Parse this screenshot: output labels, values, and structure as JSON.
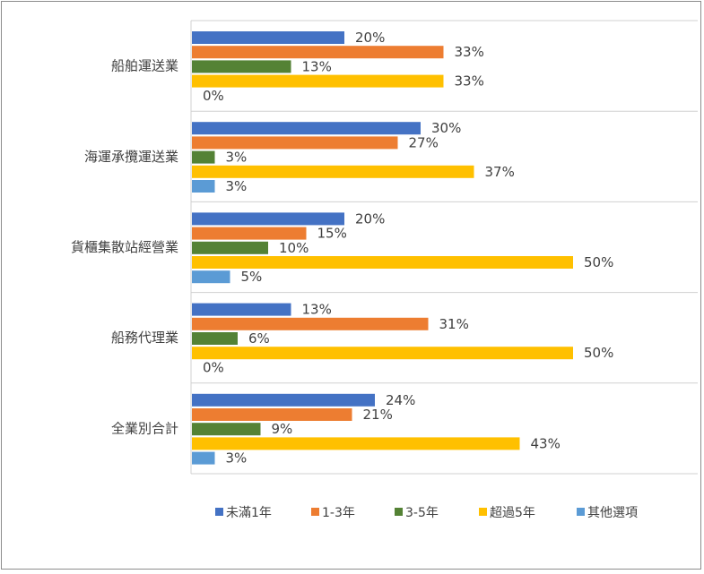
{
  "chart_data": {
    "type": "bar",
    "orientation": "horizontal",
    "categories": [
      "船舶運送業",
      "海運承攬運送業",
      "貨櫃集散站經營業",
      "船務代理業",
      "全業別合計"
    ],
    "series": [
      {
        "name": "未滿1年",
        "color": "#4472C4",
        "values": [
          20,
          30,
          20,
          13,
          24
        ],
        "labels": [
          "20%",
          "30%",
          "20%",
          "13%",
          "24%"
        ]
      },
      {
        "name": "1-3年",
        "color": "#ED7D31",
        "values": [
          33,
          27,
          15,
          31,
          21
        ],
        "labels": [
          "33%",
          "27%",
          "15%",
          "31%",
          "21%"
        ]
      },
      {
        "name": "3-5年",
        "color": "#548235",
        "values": [
          13,
          3,
          10,
          6,
          9
        ],
        "labels": [
          "13%",
          "3%",
          "10%",
          "6%",
          "9%"
        ]
      },
      {
        "name": "超過5年",
        "color": "#FFC000",
        "values": [
          33,
          37,
          50,
          50,
          43
        ],
        "labels": [
          "33%",
          "37%",
          "50%",
          "50%",
          "43%"
        ]
      },
      {
        "name": "其他選項",
        "color": "#5B9BD5",
        "values": [
          0,
          3,
          5,
          0,
          3
        ],
        "labels": [
          "0%",
          "3%",
          "5%",
          "0%",
          "3%"
        ]
      }
    ],
    "xlim": [
      0,
      100
    ],
    "unit": "%",
    "legend_position": "bottom",
    "grid": "category separators"
  }
}
